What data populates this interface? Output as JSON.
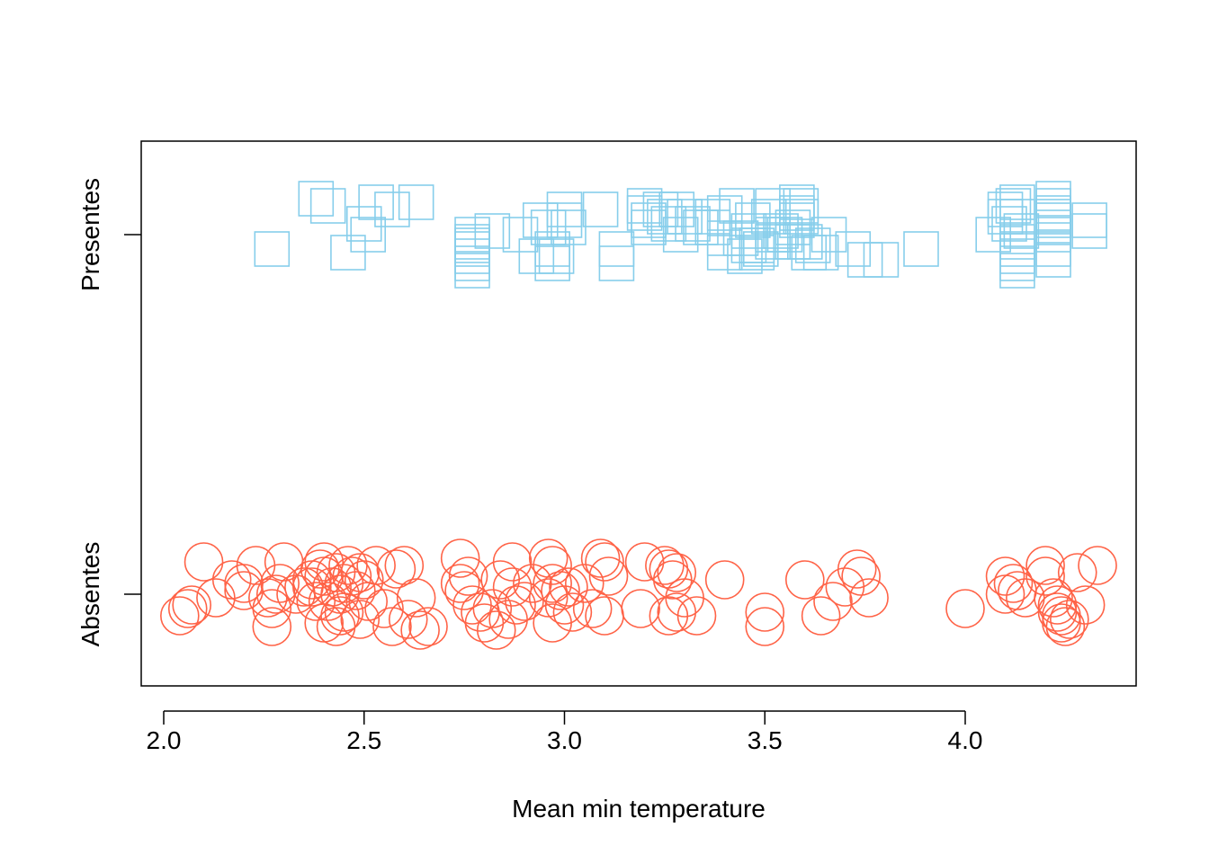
{
  "chart_data": {
    "type": "scatter",
    "title": "",
    "xlabel": "Mean min temperature",
    "ylabel": "",
    "xlim": [
      1.94,
      4.42
    ],
    "x_ticks": [
      2.0,
      2.5,
      3.0,
      3.5,
      4.0
    ],
    "x_tick_labels": [
      "2.0",
      "2.5",
      "3.0",
      "3.5",
      "4.0"
    ],
    "categories": [
      "Absentes",
      "Presentes"
    ],
    "grid": false,
    "legend": "none",
    "series": [
      {
        "category": "Presentes",
        "marker": "square",
        "color": "#87CEEB",
        "points": [
          [
            2.27,
            -0.04
          ],
          [
            2.38,
            0.1
          ],
          [
            2.41,
            0.08
          ],
          [
            2.46,
            -0.05
          ],
          [
            2.5,
            0.03
          ],
          [
            2.51,
            0.0
          ],
          [
            2.53,
            0.09
          ],
          [
            2.57,
            0.07
          ],
          [
            2.63,
            0.09
          ],
          [
            2.77,
            -0.02
          ],
          [
            2.77,
            -0.04
          ],
          [
            2.77,
            -0.06
          ],
          [
            2.77,
            -0.08
          ],
          [
            2.77,
            -0.1
          ],
          [
            2.77,
            -0.0
          ],
          [
            2.77,
            -0.03
          ],
          [
            2.82,
            0.01
          ],
          [
            2.89,
            0.0
          ],
          [
            2.93,
            -0.06
          ],
          [
            2.94,
            0.04
          ],
          [
            2.96,
            0.02
          ],
          [
            2.97,
            -0.04
          ],
          [
            2.97,
            -0.08
          ],
          [
            2.98,
            -0.06
          ],
          [
            3.0,
            0.04
          ],
          [
            3.0,
            0.07
          ],
          [
            3.01,
            0.02
          ],
          [
            3.09,
            0.07
          ],
          [
            3.13,
            -0.04
          ],
          [
            3.13,
            -0.08
          ],
          [
            3.2,
            0.08
          ],
          [
            3.2,
            0.06
          ],
          [
            3.21,
            0.02
          ],
          [
            3.21,
            0.04
          ],
          [
            3.24,
            0.07
          ],
          [
            3.25,
            0.05
          ],
          [
            3.26,
            0.03
          ],
          [
            3.28,
            0.07
          ],
          [
            3.29,
            0.0
          ],
          [
            3.3,
            0.05
          ],
          [
            3.32,
            0.03
          ],
          [
            3.34,
            0.02
          ],
          [
            3.37,
            0.02
          ],
          [
            3.37,
            0.05
          ],
          [
            3.4,
            0.06
          ],
          [
            3.4,
            -0.01
          ],
          [
            3.4,
            -0.05
          ],
          [
            3.43,
            0.08
          ],
          [
            3.44,
            -0.01
          ],
          [
            3.45,
            -0.06
          ],
          [
            3.46,
            0.01
          ],
          [
            3.46,
            -0.03
          ],
          [
            3.47,
            0.04
          ],
          [
            3.48,
            -0.03
          ],
          [
            3.48,
            -0.05
          ],
          [
            3.49,
            -0.04
          ],
          [
            3.51,
            0.05
          ],
          [
            3.52,
            0.0
          ],
          [
            3.52,
            -0.02
          ],
          [
            3.52,
            0.08
          ],
          [
            3.54,
            0.01
          ],
          [
            3.55,
            0.0
          ],
          [
            3.57,
            -0.02
          ],
          [
            3.57,
            0.02
          ],
          [
            3.58,
            0.06
          ],
          [
            3.58,
            0.09
          ],
          [
            3.58,
            0.04
          ],
          [
            3.59,
            0.08
          ],
          [
            3.59,
            0.05
          ],
          [
            3.6,
            -0.02
          ],
          [
            3.61,
            -0.05
          ],
          [
            3.62,
            -0.03
          ],
          [
            3.64,
            -0.05
          ],
          [
            3.66,
            0.0
          ],
          [
            3.72,
            -0.04
          ],
          [
            3.75,
            -0.07
          ],
          [
            3.79,
            -0.07
          ],
          [
            3.89,
            -0.04
          ],
          [
            4.07,
            0.0
          ],
          [
            4.1,
            0.07
          ],
          [
            4.1,
            0.05
          ],
          [
            4.11,
            0.03
          ],
          [
            4.12,
            0.08
          ],
          [
            4.13,
            0.05
          ],
          [
            4.13,
            0.09
          ],
          [
            4.14,
            0.01
          ],
          [
            4.13,
            -0.04
          ],
          [
            4.13,
            -0.06
          ],
          [
            4.13,
            -0.08
          ],
          [
            4.13,
            -0.1
          ],
          [
            4.13,
            -0.02
          ],
          [
            4.22,
            0.08
          ],
          [
            4.22,
            0.1
          ],
          [
            4.22,
            0.06
          ],
          [
            4.22,
            0.05
          ],
          [
            4.22,
            0.04
          ],
          [
            4.22,
            0.02
          ],
          [
            4.22,
            0.0
          ],
          [
            4.22,
            -0.04
          ],
          [
            4.22,
            -0.07
          ],
          [
            4.31,
            0.04
          ],
          [
            4.31,
            0.01
          ]
        ]
      },
      {
        "category": "Absentes",
        "marker": "circle",
        "color": "#FF6347",
        "points": [
          [
            2.04,
            -0.06
          ],
          [
            2.06,
            -0.04
          ],
          [
            2.07,
            -0.03
          ],
          [
            2.1,
            0.09
          ],
          [
            2.13,
            -0.01
          ],
          [
            2.17,
            0.04
          ],
          [
            2.2,
            0.03
          ],
          [
            2.2,
            0.01
          ],
          [
            2.23,
            0.08
          ],
          [
            2.26,
            -0.01
          ],
          [
            2.27,
            -0.04
          ],
          [
            2.27,
            -0.09
          ],
          [
            2.28,
            0.0
          ],
          [
            2.29,
            0.03
          ],
          [
            2.3,
            0.09
          ],
          [
            2.33,
            0.0
          ],
          [
            2.35,
            0.02
          ],
          [
            2.37,
            0.04
          ],
          [
            2.37,
            0.02
          ],
          [
            2.38,
            -0.02
          ],
          [
            2.39,
            0.07
          ],
          [
            2.4,
            0.05
          ],
          [
            2.4,
            0.09
          ],
          [
            2.4,
            -0.08
          ],
          [
            2.41,
            -0.02
          ],
          [
            2.42,
            0.02
          ],
          [
            2.43,
            0.06
          ],
          [
            2.43,
            -0.09
          ],
          [
            2.44,
            -0.06
          ],
          [
            2.44,
            0.0
          ],
          [
            2.45,
            0.03
          ],
          [
            2.45,
            -0.05
          ],
          [
            2.46,
            0.08
          ],
          [
            2.47,
            0.05
          ],
          [
            2.48,
            0.01
          ],
          [
            2.49,
            -0.07
          ],
          [
            2.49,
            0.06
          ],
          [
            2.5,
            0.04
          ],
          [
            2.51,
            -0.02
          ],
          [
            2.53,
            0.08
          ],
          [
            2.55,
            -0.04
          ],
          [
            2.57,
            -0.09
          ],
          [
            2.58,
            0.07
          ],
          [
            2.6,
            0.08
          ],
          [
            2.61,
            -0.07
          ],
          [
            2.63,
            -0.01
          ],
          [
            2.64,
            -0.1
          ],
          [
            2.66,
            -0.09
          ],
          [
            2.74,
            0.1
          ],
          [
            2.74,
            0.03
          ],
          [
            2.75,
            0.01
          ],
          [
            2.76,
            0.05
          ],
          [
            2.77,
            -0.03
          ],
          [
            2.79,
            -0.05
          ],
          [
            2.8,
            -0.08
          ],
          [
            2.82,
            -0.04
          ],
          [
            2.83,
            -0.1
          ],
          [
            2.84,
            0.04
          ],
          [
            2.86,
            -0.07
          ],
          [
            2.87,
            0.09
          ],
          [
            2.87,
            0.02
          ],
          [
            2.88,
            -0.03
          ],
          [
            2.9,
            -0.02
          ],
          [
            2.92,
            0.03
          ],
          [
            2.96,
            -0.01
          ],
          [
            2.96,
            0.1
          ],
          [
            2.97,
            0.08
          ],
          [
            2.97,
            0.03
          ],
          [
            2.97,
            -0.08
          ],
          [
            2.99,
            0.01
          ],
          [
            3.0,
            -0.03
          ],
          [
            3.01,
            0.02
          ],
          [
            3.02,
            -0.05
          ],
          [
            3.05,
            0.03
          ],
          [
            3.07,
            -0.04
          ],
          [
            3.09,
            0.1
          ],
          [
            3.1,
            -0.06
          ],
          [
            3.1,
            0.09
          ],
          [
            3.11,
            0.05
          ],
          [
            3.19,
            -0.04
          ],
          [
            3.2,
            0.09
          ],
          [
            3.25,
            0.08
          ],
          [
            3.26,
            0.07
          ],
          [
            3.26,
            -0.06
          ],
          [
            3.27,
            0.04
          ],
          [
            3.28,
            0.06
          ],
          [
            3.28,
            -0.05
          ],
          [
            3.3,
            -0.01
          ],
          [
            3.33,
            -0.06
          ],
          [
            3.4,
            0.04
          ],
          [
            3.5,
            -0.05
          ],
          [
            3.5,
            -0.09
          ],
          [
            3.6,
            0.04
          ],
          [
            3.64,
            -0.06
          ],
          [
            3.67,
            -0.02
          ],
          [
            3.7,
            0.02
          ],
          [
            3.73,
            0.07
          ],
          [
            3.74,
            0.05
          ],
          [
            3.76,
            -0.01
          ],
          [
            4.0,
            -0.04
          ],
          [
            4.1,
            0.05
          ],
          [
            4.1,
            0.0
          ],
          [
            4.12,
            0.03
          ],
          [
            4.13,
            0.01
          ],
          [
            4.15,
            -0.01
          ],
          [
            4.2,
            0.05
          ],
          [
            4.2,
            0.08
          ],
          [
            4.22,
            -0.01
          ],
          [
            4.23,
            -0.05
          ],
          [
            4.23,
            -0.03
          ],
          [
            4.24,
            -0.08
          ],
          [
            4.24,
            -0.06
          ],
          [
            4.25,
            -0.09
          ],
          [
            4.26,
            -0.07
          ],
          [
            4.28,
            0.06
          ],
          [
            4.3,
            -0.03
          ],
          [
            4.33,
            0.08
          ]
        ]
      }
    ]
  }
}
